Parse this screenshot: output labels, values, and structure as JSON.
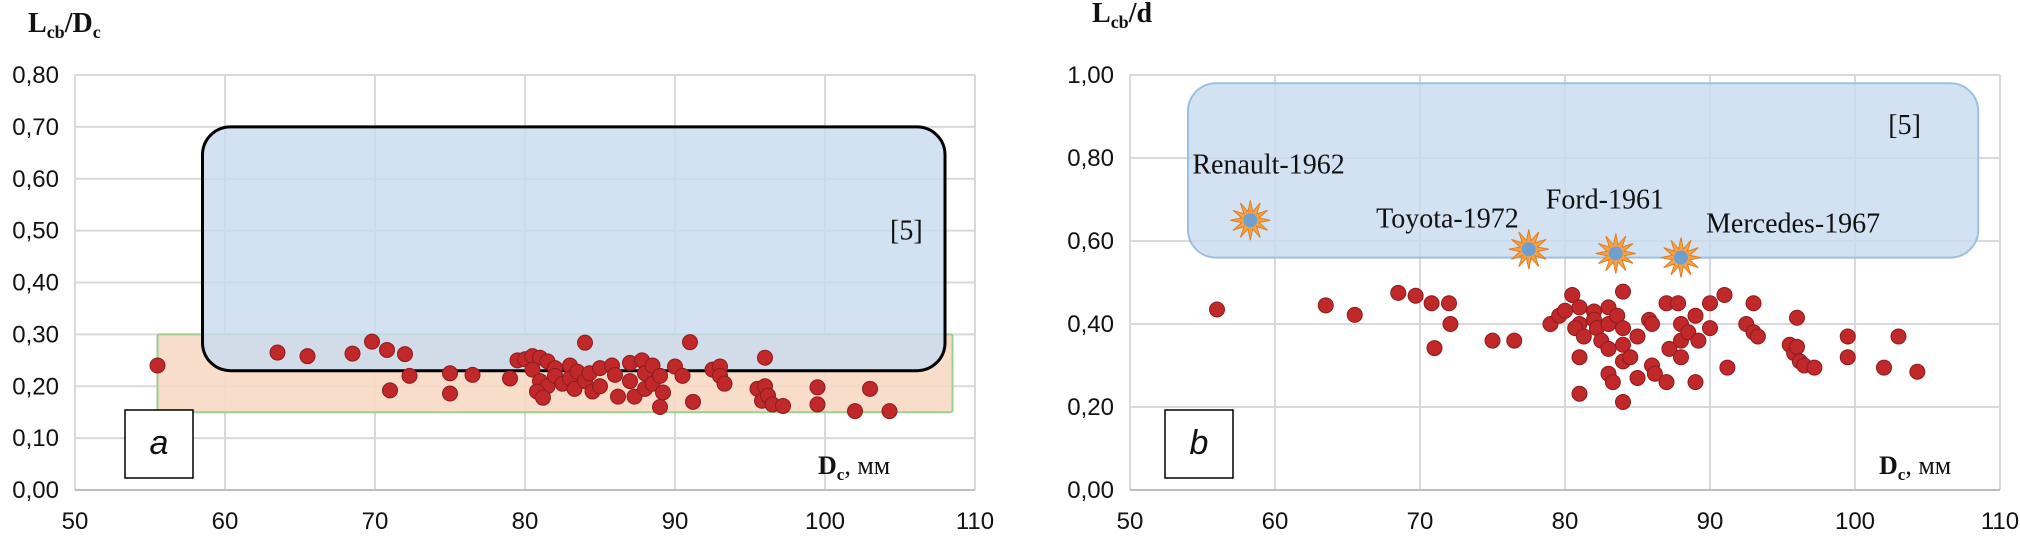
{
  "chart_data": [
    {
      "type": "scatter",
      "panel_label": "a",
      "ylabel_main": "L",
      "ylabel_sub": "cb",
      "ylabel_mid": "/D",
      "ylabel_sub2": "c",
      "xlabel_main": "D",
      "xlabel_sub": "c",
      "xlabel_unit": ", мм",
      "xlim": [
        50,
        110
      ],
      "ylim": [
        0,
        0.8
      ],
      "x_ticks": [
        "50",
        "60",
        "70",
        "80",
        "90",
        "100",
        "110"
      ],
      "y_ticks": [
        "0,00",
        "0,10",
        "0,20",
        "0,30",
        "0,40",
        "0,50",
        "0,60",
        "0,70",
        "0,80"
      ],
      "grid": true,
      "regions": [
        {
          "name": "pink-band",
          "x": [
            55.5,
            108.5
          ],
          "y": [
            0.15,
            0.3
          ],
          "fill": "#f7d9c4",
          "stroke": "#9ccf90"
        },
        {
          "name": "reference-region",
          "label": "[5]",
          "x": [
            58.5,
            108
          ],
          "y": [
            0.23,
            0.7
          ],
          "fill": "#c9dcef",
          "stroke": "#000000"
        }
      ],
      "point_color": "#c0282a",
      "points": [
        [
          55.5,
          0.24
        ],
        [
          63.5,
          0.265
        ],
        [
          65.5,
          0.258
        ],
        [
          68.5,
          0.263
        ],
        [
          69.8,
          0.286
        ],
        [
          70.8,
          0.27
        ],
        [
          72,
          0.262
        ],
        [
          71,
          0.192
        ],
        [
          72.3,
          0.22
        ],
        [
          75,
          0.225
        ],
        [
          75,
          0.186
        ],
        [
          76.5,
          0.222
        ],
        [
          79,
          0.215
        ],
        [
          79.5,
          0.25
        ],
        [
          80,
          0.252
        ],
        [
          80.5,
          0.258
        ],
        [
          81,
          0.255
        ],
        [
          81.5,
          0.248
        ],
        [
          80.5,
          0.232
        ],
        [
          81,
          0.21
        ],
        [
          81.5,
          0.2
        ],
        [
          80.8,
          0.19
        ],
        [
          81.2,
          0.178
        ],
        [
          82,
          0.235
        ],
        [
          82,
          0.22
        ],
        [
          82.5,
          0.205
        ],
        [
          83,
          0.24
        ],
        [
          83,
          0.215
        ],
        [
          83.3,
          0.195
        ],
        [
          83.5,
          0.228
        ],
        [
          84,
          0.284
        ],
        [
          84,
          0.21
        ],
        [
          84.3,
          0.225
        ],
        [
          84.5,
          0.19
        ],
        [
          85,
          0.2
        ],
        [
          85,
          0.235
        ],
        [
          85.8,
          0.24
        ],
        [
          86,
          0.222
        ],
        [
          86.2,
          0.18
        ],
        [
          87,
          0.245
        ],
        [
          87,
          0.21
        ],
        [
          87.3,
          0.18
        ],
        [
          87.8,
          0.25
        ],
        [
          88,
          0.195
        ],
        [
          88,
          0.225
        ],
        [
          88.5,
          0.24
        ],
        [
          88.5,
          0.205
        ],
        [
          89,
          0.22
        ],
        [
          89.2,
          0.188
        ],
        [
          89,
          0.16
        ],
        [
          90,
          0.238
        ],
        [
          90.5,
          0.22
        ],
        [
          91,
          0.285
        ],
        [
          91.2,
          0.17
        ],
        [
          92.5,
          0.232
        ],
        [
          93,
          0.238
        ],
        [
          93,
          0.22
        ],
        [
          93.3,
          0.205
        ],
        [
          95.5,
          0.195
        ],
        [
          95.8,
          0.172
        ],
        [
          96,
          0.255
        ],
        [
          96,
          0.2
        ],
        [
          96.2,
          0.182
        ],
        [
          96.5,
          0.165
        ],
        [
          97.2,
          0.162
        ],
        [
          99.5,
          0.198
        ],
        [
          99.5,
          0.165
        ],
        [
          102,
          0.152
        ],
        [
          103,
          0.195
        ],
        [
          104.3,
          0.152
        ]
      ]
    },
    {
      "type": "scatter",
      "panel_label": "b",
      "ylabel_main": "L",
      "ylabel_sub": "cb",
      "ylabel_mid": "/d",
      "ylabel_sub2": "",
      "xlabel_main": "D",
      "xlabel_sub": "c",
      "xlabel_unit": ", мм",
      "xlim": [
        50,
        110
      ],
      "ylim": [
        0,
        1.0
      ],
      "x_ticks": [
        "50",
        "60",
        "70",
        "80",
        "90",
        "100",
        "110"
      ],
      "y_ticks": [
        "0,00",
        "0,20",
        "0,40",
        "0,60",
        "0,80",
        "1,00"
      ],
      "grid": true,
      "regions": [
        {
          "name": "reference-region",
          "label": "[5]",
          "x": [
            54,
            108.5
          ],
          "y": [
            0.56,
            0.98
          ],
          "fill": "#c9dcef",
          "stroke": "#9dbfe0"
        }
      ],
      "point_color": "#c0282a",
      "points": [
        [
          56,
          0.435
        ],
        [
          63.5,
          0.445
        ],
        [
          65.5,
          0.422
        ],
        [
          68.5,
          0.475
        ],
        [
          69.7,
          0.468
        ],
        [
          70.8,
          0.45
        ],
        [
          72,
          0.45
        ],
        [
          71,
          0.342
        ],
        [
          72.1,
          0.4
        ],
        [
          75,
          0.36
        ],
        [
          76.5,
          0.36
        ],
        [
          79,
          0.4
        ],
        [
          79.6,
          0.42
        ],
        [
          80,
          0.432
        ],
        [
          80.5,
          0.47
        ],
        [
          81,
          0.44
        ],
        [
          81,
          0.4
        ],
        [
          80.7,
          0.39
        ],
        [
          81.3,
          0.37
        ],
        [
          81,
          0.32
        ],
        [
          81,
          0.232
        ],
        [
          82,
          0.43
        ],
        [
          82,
          0.41
        ],
        [
          82.2,
          0.39
        ],
        [
          82.5,
          0.36
        ],
        [
          83,
          0.44
        ],
        [
          83,
          0.4
        ],
        [
          83,
          0.34
        ],
        [
          83,
          0.28
        ],
        [
          83.3,
          0.26
        ],
        [
          83.6,
          0.42
        ],
        [
          84,
          0.478
        ],
        [
          84,
          0.39
        ],
        [
          84,
          0.35
        ],
        [
          84,
          0.31
        ],
        [
          84,
          0.212
        ],
        [
          84.5,
          0.32
        ],
        [
          85,
          0.37
        ],
        [
          85,
          0.27
        ],
        [
          85.8,
          0.41
        ],
        [
          86,
          0.4
        ],
        [
          86,
          0.3
        ],
        [
          86.2,
          0.28
        ],
        [
          87,
          0.45
        ],
        [
          87.2,
          0.34
        ],
        [
          87,
          0.26
        ],
        [
          87.8,
          0.45
        ],
        [
          88,
          0.4
        ],
        [
          88,
          0.36
        ],
        [
          88.5,
          0.38
        ],
        [
          88,
          0.32
        ],
        [
          89,
          0.42
        ],
        [
          89.2,
          0.36
        ],
        [
          89,
          0.26
        ],
        [
          90,
          0.45
        ],
        [
          90,
          0.39
        ],
        [
          91,
          0.47
        ],
        [
          91.2,
          0.295
        ],
        [
          92.5,
          0.4
        ],
        [
          93,
          0.45
        ],
        [
          93,
          0.38
        ],
        [
          93.3,
          0.37
        ],
        [
          95.5,
          0.35
        ],
        [
          95.8,
          0.33
        ],
        [
          96,
          0.415
        ],
        [
          96,
          0.345
        ],
        [
          96.2,
          0.31
        ],
        [
          96.5,
          0.3
        ],
        [
          97.2,
          0.295
        ],
        [
          99.5,
          0.37
        ],
        [
          99.5,
          0.32
        ],
        [
          102,
          0.295
        ],
        [
          103,
          0.37
        ],
        [
          104.3,
          0.285
        ]
      ],
      "highlighted_points": [
        {
          "label": "Renault-1962",
          "x": 58.3,
          "y": 0.65
        },
        {
          "label": "Toyota-1972",
          "x": 77.5,
          "y": 0.58
        },
        {
          "label": "Ford-1961",
          "x": 83.5,
          "y": 0.57
        },
        {
          "label": "Mercedes-1967",
          "x": 88,
          "y": 0.56
        }
      ],
      "star_color": "#f2a24a",
      "star_center_color": "#6f9fcf"
    }
  ]
}
